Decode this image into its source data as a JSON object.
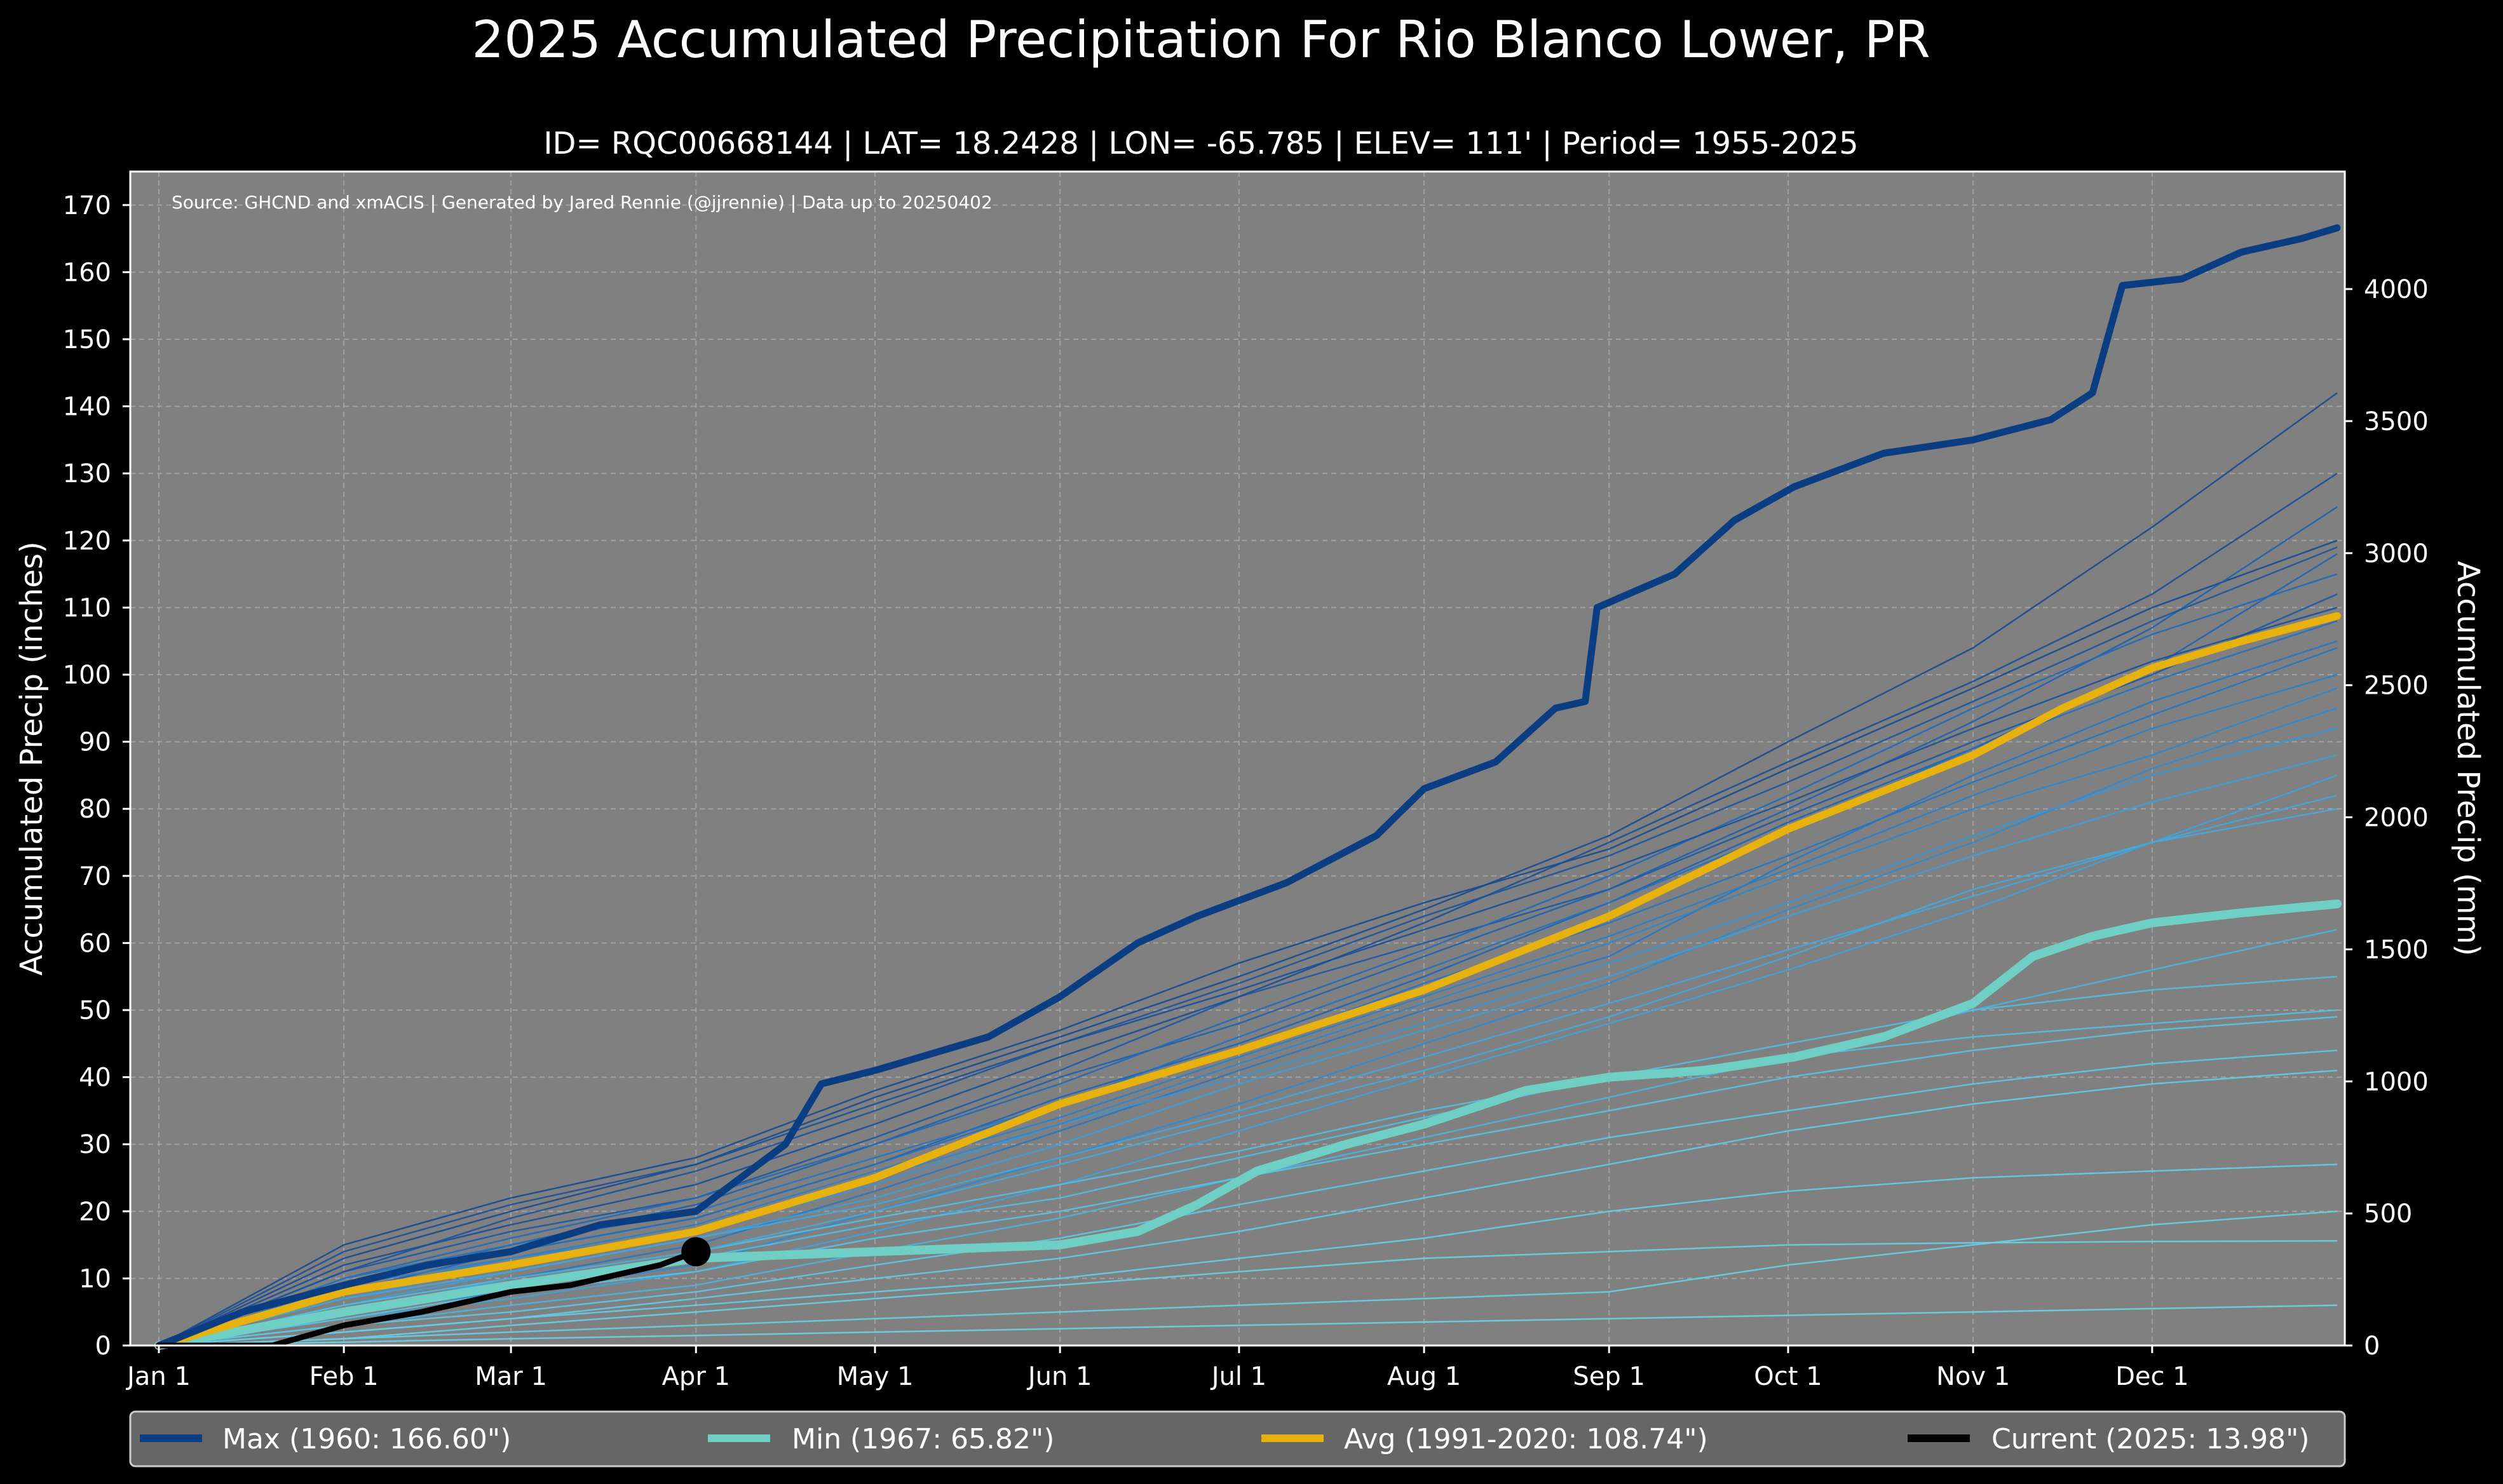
{
  "chart_data": {
    "type": "line",
    "title": "2025 Accumulated Precipitation For Rio Blanco Lower, PR",
    "subtitle": "ID= RQC00668144 | LAT= 18.2428 | LON= -65.785 | ELEV= 111' | Period= 1955-2025",
    "source_note": "Source: GHCND and xmACIS | Generated by Jared Rennie (@jjrennie) | Data up to 20250402",
    "ylabel_left": "Accumulated Precip (inches)",
    "ylabel_right": "Accumulated Precip (mm)",
    "ylim": [
      0,
      175
    ],
    "xlim": [
      1,
      366
    ],
    "y_ticks": [
      "0",
      "10",
      "20",
      "30",
      "40",
      "50",
      "60",
      "70",
      "80",
      "90",
      "100",
      "110",
      "120",
      "130",
      "140",
      "150",
      "160",
      "170"
    ],
    "y2_ticks": [
      "0",
      "500",
      "1000",
      "1500",
      "2000",
      "2500",
      "3000",
      "3500",
      "4000"
    ],
    "x_ticks": [
      {
        "label": "Jan 1",
        "day": 1
      },
      {
        "label": "Feb 1",
        "day": 32
      },
      {
        "label": "Mar 1",
        "day": 60
      },
      {
        "label": "Apr 1",
        "day": 91
      },
      {
        "label": "May 1",
        "day": 121
      },
      {
        "label": "Jun 1",
        "day": 152
      },
      {
        "label": "Jul 1",
        "day": 182
      },
      {
        "label": "Aug 1",
        "day": 213
      },
      {
        "label": "Sep 1",
        "day": 244
      },
      {
        "label": "Oct 1",
        "day": 274
      },
      {
        "label": "Nov 1",
        "day": 305
      },
      {
        "label": "Dec 1",
        "day": 335
      }
    ],
    "grid": true,
    "legend_location": "bottom",
    "series": [
      {
        "name": "Max",
        "label": "Max (1960: 166.60\")",
        "color": "#0a3d82",
        "x": [
          1,
          15,
          32,
          46,
          60,
          75,
          91,
          106,
          112,
          121,
          140,
          152,
          165,
          175,
          190,
          205,
          213,
          225,
          235,
          240,
          242,
          255,
          265,
          275,
          290,
          305,
          318,
          325,
          330,
          340,
          350,
          360,
          366
        ],
        "y": [
          0,
          5,
          9,
          12,
          14,
          18,
          20,
          30,
          39,
          41,
          46,
          52,
          60,
          64,
          69,
          76,
          83,
          87,
          95,
          96,
          110,
          115,
          123,
          128,
          133,
          135,
          138,
          142,
          158,
          159,
          163,
          165,
          166.6
        ]
      },
      {
        "name": "Min",
        "label": "Min (1967:  65.82\")",
        "color": "#6fcfc4",
        "x": [
          1,
          32,
          60,
          91,
          121,
          152,
          165,
          175,
          185,
          200,
          213,
          230,
          244,
          260,
          275,
          290,
          305,
          315,
          325,
          335,
          350,
          366
        ],
        "y": [
          0,
          5,
          9,
          13,
          14,
          15,
          17,
          21,
          26,
          30,
          33,
          38,
          40,
          41,
          43,
          46,
          51,
          58,
          61,
          63,
          64.5,
          65.82
        ]
      },
      {
        "name": "Avg",
        "label": "Avg (1991-2020: 108.74\")",
        "color": "#e8b20e",
        "x": [
          1,
          32,
          60,
          91,
          121,
          152,
          182,
          213,
          244,
          274,
          305,
          320,
          335,
          350,
          366
        ],
        "y": [
          0,
          8,
          12,
          17,
          25,
          36,
          44,
          53,
          64,
          77,
          88,
          95,
          101,
          105,
          108.74
        ]
      },
      {
        "name": "Current",
        "label": "Current (2025:  13.98\")",
        "color": "#000000",
        "x": [
          1,
          20,
          32,
          45,
          55,
          60,
          70,
          80,
          85,
          91
        ],
        "y": [
          0,
          0,
          3,
          5,
          7,
          8,
          9,
          11,
          12,
          13.98
        ]
      }
    ],
    "current_marker": {
      "day": 91,
      "value": 13.98
    },
    "background_years": [
      {
        "x": [
          1,
          32,
          60,
          91,
          121,
          152,
          182,
          213,
          244,
          274,
          305,
          335,
          366
        ],
        "y": [
          0,
          11,
          17,
          22,
          31,
          41,
          52,
          60,
          68,
          79,
          90,
          100,
          112
        ],
        "color": "#1a56a6"
      },
      {
        "x": [
          1,
          32,
          60,
          91,
          121,
          152,
          182,
          213,
          244,
          274,
          305,
          335,
          366
        ],
        "y": [
          0,
          8,
          14,
          19,
          27,
          37,
          45,
          55,
          66,
          78,
          89,
          101,
          118
        ],
        "color": "#1b63b5"
      },
      {
        "x": [
          1,
          32,
          60,
          91,
          121,
          152,
          182,
          213,
          244,
          274,
          305,
          335,
          366
        ],
        "y": [
          0,
          15,
          22,
          28,
          38,
          47,
          57,
          66,
          74,
          86,
          98,
          110,
          120
        ],
        "color": "#15498f"
      },
      {
        "x": [
          1,
          32,
          60,
          91,
          121,
          152,
          182,
          213,
          244,
          274,
          305,
          335,
          366
        ],
        "y": [
          0,
          6,
          10,
          15,
          23,
          32,
          41,
          50,
          58,
          72,
          85,
          96,
          105
        ],
        "color": "#2476c4"
      },
      {
        "x": [
          1,
          32,
          60,
          91,
          121,
          152,
          182,
          213,
          244,
          274,
          305,
          335,
          366
        ],
        "y": [
          0,
          12,
          18,
          24,
          33,
          43,
          52,
          63,
          75,
          87,
          99,
          112,
          130
        ],
        "color": "#164e98"
      },
      {
        "x": [
          1,
          32,
          60,
          91,
          121,
          152,
          182,
          213,
          244,
          274,
          305,
          335,
          366
        ],
        "y": [
          0,
          5,
          8,
          12,
          20,
          28,
          36,
          45,
          54,
          65,
          75,
          86,
          95
        ],
        "color": "#2c8ad1"
      },
      {
        "x": [
          1,
          32,
          60,
          91,
          121,
          152,
          182,
          213,
          244,
          274,
          305,
          335,
          366
        ],
        "y": [
          0,
          9,
          15,
          21,
          30,
          40,
          48,
          58,
          68,
          80,
          93,
          107,
          125
        ],
        "color": "#1b5fb0"
      },
      {
        "x": [
          1,
          32,
          60,
          91,
          121,
          152,
          182,
          213,
          244,
          274,
          305,
          335,
          366
        ],
        "y": [
          0,
          13,
          20,
          27,
          37,
          46,
          55,
          65,
          76,
          90,
          104,
          122,
          142
        ],
        "color": "#154a92"
      },
      {
        "x": [
          1,
          32,
          60,
          91,
          121,
          152,
          182,
          213,
          244,
          274,
          305,
          335,
          366
        ],
        "y": [
          0,
          7,
          12,
          17,
          24,
          33,
          40,
          48,
          57,
          66,
          76,
          85,
          92
        ],
        "color": "#3596d6"
      },
      {
        "x": [
          1,
          32,
          60,
          91,
          121,
          152,
          182,
          213,
          244,
          274,
          305,
          335,
          366
        ],
        "y": [
          0,
          10,
          16,
          22,
          30,
          39,
          49,
          59,
          70,
          82,
          95,
          106,
          115
        ],
        "color": "#1e69bb"
      },
      {
        "x": [
          1,
          32,
          60,
          91,
          121,
          152,
          182,
          213,
          244,
          274,
          305,
          335,
          366
        ],
        "y": [
          0,
          4,
          7,
          11,
          17,
          24,
          32,
          40,
          48,
          56,
          65,
          75,
          85
        ],
        "color": "#3ea3dc"
      },
      {
        "x": [
          1,
          32,
          60,
          91,
          121,
          152,
          182,
          213,
          244,
          274,
          305,
          335,
          366
        ],
        "y": [
          0,
          11,
          19,
          26,
          35,
          45,
          54,
          64,
          73,
          84,
          96,
          108,
          119
        ],
        "color": "#18539e"
      },
      {
        "x": [
          1,
          32,
          60,
          91,
          121,
          152,
          182,
          213,
          244,
          274,
          305,
          335,
          366
        ],
        "y": [
          0,
          6,
          11,
          16,
          22,
          30,
          39,
          47,
          55,
          64,
          73,
          81,
          88
        ],
        "color": "#3a9fd9"
      },
      {
        "x": [
          1,
          32,
          60,
          91,
          121,
          152,
          182,
          213,
          244,
          274,
          305,
          335,
          366
        ],
        "y": [
          0,
          9,
          13,
          18,
          26,
          34,
          43,
          52,
          61,
          71,
          82,
          92,
          100
        ],
        "color": "#2780c8"
      },
      {
        "x": [
          1,
          32,
          60,
          91,
          121,
          152,
          182,
          213,
          244,
          274,
          305,
          335,
          366
        ],
        "y": [
          0,
          3,
          6,
          9,
          14,
          19,
          25,
          31,
          37,
          43,
          50,
          56,
          62
        ],
        "color": "#4ab3e0"
      },
      {
        "x": [
          1,
          32,
          60,
          91,
          121,
          152,
          182,
          213,
          244,
          274,
          305,
          335,
          366
        ],
        "y": [
          0,
          5,
          9,
          13,
          18,
          22,
          28,
          34,
          40,
          45,
          50,
          53,
          55
        ],
        "color": "#52bde3"
      },
      {
        "x": [
          1,
          32,
          60,
          91,
          121,
          152,
          182,
          213,
          244,
          274,
          305,
          335,
          366
        ],
        "y": [
          0,
          4,
          8,
          11,
          16,
          20,
          25,
          30,
          35,
          40,
          44,
          47,
          49
        ],
        "color": "#57c3e5"
      },
      {
        "x": [
          1,
          32,
          60,
          91,
          121,
          152,
          182,
          213,
          244,
          274,
          305,
          335,
          366
        ],
        "y": [
          0,
          3,
          5,
          8,
          12,
          16,
          21,
          26,
          31,
          35,
          39,
          42,
          44
        ],
        "color": "#5cc8e6"
      },
      {
        "x": [
          1,
          32,
          60,
          91,
          121,
          152,
          182,
          213,
          244,
          274,
          305,
          335,
          366
        ],
        "y": [
          0,
          2,
          4,
          7,
          10,
          13,
          17,
          22,
          27,
          32,
          36,
          39,
          41
        ],
        "color": "#60cbe7"
      },
      {
        "x": [
          1,
          32,
          60,
          91,
          121,
          152,
          182,
          213,
          244,
          274,
          305,
          335,
          366
        ],
        "y": [
          0,
          6,
          10,
          14,
          19,
          24,
          29,
          35,
          40,
          43,
          46,
          48,
          50
        ],
        "color": "#54bfe4"
      },
      {
        "x": [
          1,
          32,
          60,
          91,
          121,
          152,
          182,
          213,
          244,
          274,
          305,
          335,
          366
        ],
        "y": [
          0,
          2,
          4,
          6,
          8,
          10,
          13,
          16,
          20,
          23,
          25,
          26,
          27
        ],
        "color": "#63cde8"
      },
      {
        "x": [
          1,
          32,
          60,
          91,
          121,
          152,
          182,
          213,
          244,
          274,
          305,
          335,
          366
        ],
        "y": [
          0,
          1,
          3,
          5,
          7,
          9,
          11,
          13,
          14,
          15,
          15.3,
          15.5,
          15.6
        ],
        "color": "#66d0e8"
      },
      {
        "x": [
          1,
          32,
          60,
          91,
          121,
          152,
          182,
          213,
          244,
          274,
          305,
          335,
          366
        ],
        "y": [
          0,
          1,
          2,
          3,
          4,
          5,
          6,
          7,
          8,
          12,
          15,
          18,
          20
        ],
        "color": "#65cfe8"
      },
      {
        "x": [
          1,
          32,
          60,
          91,
          121,
          152,
          182,
          213,
          244,
          274,
          305,
          335,
          366
        ],
        "y": [
          0,
          0.5,
          1,
          1.5,
          2,
          2.5,
          3,
          3.5,
          4,
          4.5,
          5,
          5.5,
          6
        ],
        "color": "#6ad3ea"
      },
      {
        "x": [
          1,
          32,
          60,
          91,
          121,
          152,
          182,
          213,
          244,
          274,
          305,
          335,
          366
        ],
        "y": [
          0,
          8,
          13,
          17,
          25,
          33,
          42,
          51,
          60,
          70,
          80,
          88,
          98
        ],
        "color": "#2a86cd"
      },
      {
        "x": [
          1,
          32,
          60,
          91,
          121,
          152,
          182,
          213,
          244,
          274,
          305,
          335,
          366
        ],
        "y": [
          0,
          7,
          11,
          16,
          21,
          28,
          35,
          43,
          51,
          59,
          67,
          75,
          82
        ],
        "color": "#40a7dd"
      },
      {
        "x": [
          1,
          32,
          60,
          91,
          121,
          152,
          182,
          213,
          244,
          274,
          305,
          335,
          366
        ],
        "y": [
          0,
          10,
          15,
          20,
          28,
          36,
          44,
          54,
          63,
          73,
          84,
          94,
          104
        ],
        "color": "#2373c1"
      },
      {
        "x": [
          1,
          32,
          60,
          91,
          121,
          152,
          182,
          213,
          244,
          274,
          305,
          335,
          366
        ],
        "y": [
          0,
          14,
          21,
          27,
          36,
          45,
          53,
          62,
          71,
          81,
          92,
          102,
          110
        ],
        "color": "#174f9a"
      },
      {
        "x": [
          1,
          32,
          60,
          91,
          121,
          152,
          182,
          213,
          244,
          274,
          305,
          335,
          366
        ],
        "y": [
          0,
          5,
          10,
          14,
          20,
          27,
          34,
          41,
          49,
          58,
          68,
          75,
          80
        ],
        "color": "#44aadd"
      },
      {
        "x": [
          1,
          32,
          60,
          91,
          121,
          152,
          182,
          213,
          244,
          274,
          305,
          335,
          366
        ],
        "y": [
          0,
          9,
          14,
          19,
          27,
          36,
          46,
          56,
          66,
          77,
          89,
          99,
          108
        ],
        "color": "#2070bf"
      }
    ]
  },
  "legend": {
    "max_label": "Max (1960: 166.60\")",
    "min_label": "Min (1967:  65.82\")",
    "avg_label": "Avg (1991-2020: 108.74\")",
    "current_label": "Current (2025:  13.98\")"
  },
  "colors": {
    "page_bg": "#000000",
    "plot_bg": "#808080",
    "grid": "#b0b0b0",
    "legend_bg": "#666666",
    "text": "#ffffff"
  }
}
